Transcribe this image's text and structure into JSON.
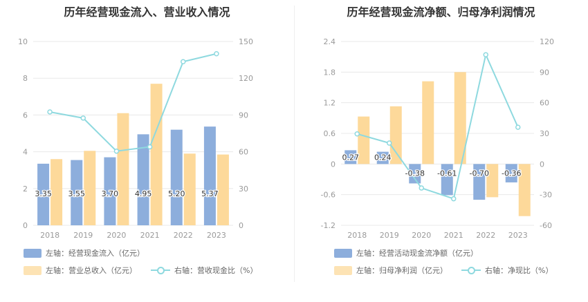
{
  "colors": {
    "bar_blue": "#8DAEDC",
    "bar_orange": "#FDD99A",
    "line_cyan": "#8ED9DF",
    "axis_text": "#999999",
    "grid": "#E8E8E8"
  },
  "charts": [
    {
      "title": "历年经营现金流入、营业收入情况",
      "legend": {
        "bar1": "左轴：经营现金流入（亿元）",
        "bar2": "左轴：营业总收入（亿元）",
        "line": "右轴：营收现金比（%）"
      }
    },
    {
      "title": "历年经营现金流净额、归母净利润情况",
      "legend": {
        "bar1": "左轴：经营活动现金流净额（亿元）",
        "bar2": "左轴：归母净利润（亿元）",
        "line": "右轴：净现比（%）"
      }
    }
  ],
  "chart_data": [
    {
      "type": "bar",
      "categories": [
        "2018",
        "2019",
        "2020",
        "2021",
        "2022",
        "2023"
      ],
      "series": [
        {
          "name": "左轴：经营现金流入（亿元）",
          "axis": "left",
          "type": "bar",
          "values": [
            3.35,
            3.55,
            3.7,
            4.95,
            5.2,
            5.37
          ],
          "labels": [
            "3.35",
            "3.55",
            "3.70",
            "4.95",
            "5.20",
            "5.37"
          ]
        },
        {
          "name": "左轴：营业总收入（亿元）",
          "axis": "left",
          "type": "bar",
          "values": [
            3.6,
            4.05,
            6.1,
            7.7,
            3.9,
            3.85
          ]
        },
        {
          "name": "右轴：营收现金比（%）",
          "axis": "right",
          "type": "line",
          "values": [
            92.5,
            87.5,
            60.5,
            64.0,
            133.5,
            140.0
          ]
        }
      ],
      "y_left": {
        "min": 0,
        "max": 10,
        "ticks": [
          "0",
          "2",
          "4",
          "6",
          "8",
          "10"
        ]
      },
      "y_right": {
        "min": 0,
        "max": 150,
        "ticks": [
          "0",
          "30",
          "60",
          "90",
          "120",
          "150"
        ]
      },
      "grid": true,
      "legend_position": "bottom"
    },
    {
      "type": "bar",
      "categories": [
        "2018",
        "2019",
        "2020",
        "2021",
        "2022",
        "2023"
      ],
      "series": [
        {
          "name": "左轴：经营活动现金流净额（亿元）",
          "axis": "left",
          "type": "bar",
          "values": [
            0.27,
            0.24,
            -0.38,
            -0.61,
            -0.7,
            -0.36
          ],
          "labels": [
            "0.27",
            "0.24",
            "-0.38",
            "-0.61",
            "-0.70",
            "-0.36"
          ]
        },
        {
          "name": "左轴：归母净利润（亿元）",
          "axis": "left",
          "type": "bar",
          "values": [
            0.93,
            1.13,
            1.62,
            1.8,
            -0.65,
            -1.02
          ]
        },
        {
          "name": "右轴：净现比（%）",
          "axis": "right",
          "type": "line",
          "values": [
            29.5,
            20.5,
            -23.5,
            -34.0,
            107.0,
            36.0
          ]
        }
      ],
      "y_left": {
        "min": -1.2,
        "max": 2.4,
        "ticks": [
          "-1.2",
          "-0.6",
          "0",
          "0.6",
          "1.2",
          "1.8",
          "2.4"
        ]
      },
      "y_right": {
        "min": -60,
        "max": 120,
        "ticks": [
          "-60",
          "-30",
          "0",
          "30",
          "60",
          "90",
          "120"
        ]
      },
      "grid": true,
      "legend_position": "bottom"
    }
  ]
}
